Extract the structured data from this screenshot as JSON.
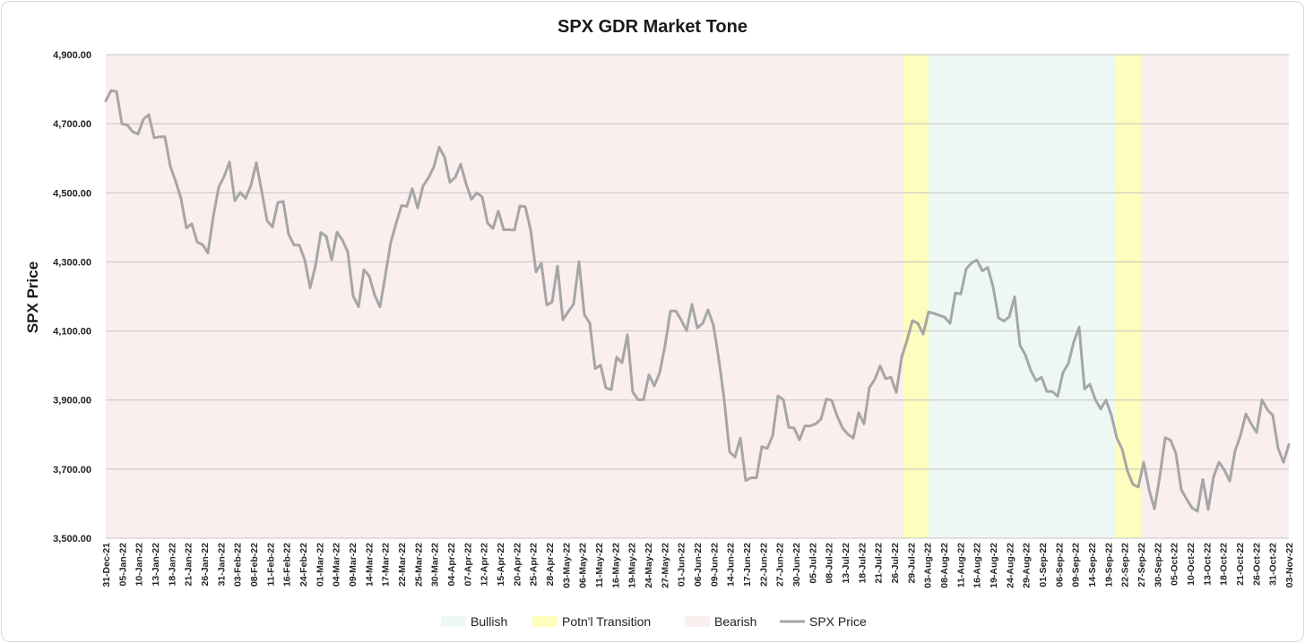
{
  "chart_data": {
    "type": "line",
    "title": "SPX GDR Market Tone",
    "ylabel": "SPX Price",
    "xlabel": "",
    "ylim": [
      3500,
      4900
    ],
    "yticks": [
      3500,
      3700,
      3900,
      4100,
      4300,
      4500,
      4700,
      4900
    ],
    "ytick_labels": [
      "3,500.00",
      "3,700.00",
      "3,900.00",
      "4,100.00",
      "4,300.00",
      "4,500.00",
      "4,700.00",
      "4,900.00"
    ],
    "grid": "horizontal",
    "legend_placement": "bottom-center",
    "xtick_labels": [
      "31-Dec-21",
      "05-Jan-22",
      "10-Jan-22",
      "13-Jan-22",
      "18-Jan-22",
      "21-Jan-22",
      "26-Jan-22",
      "31-Jan-22",
      "03-Feb-22",
      "08-Feb-22",
      "11-Feb-22",
      "16-Feb-22",
      "24-Feb-22",
      "01-Mar-22",
      "04-Mar-22",
      "09-Mar-22",
      "14-Mar-22",
      "17-Mar-22",
      "22-Mar-22",
      "25-Mar-22",
      "30-Mar-22",
      "04-Apr-22",
      "07-Apr-22",
      "12-Apr-22",
      "15-Apr-22",
      "20-Apr-22",
      "25-Apr-22",
      "28-Apr-22",
      "03-May-22",
      "06-May-22",
      "11-May-22",
      "16-May-22",
      "19-May-22",
      "24-May-22",
      "27-May-22",
      "01-Jun-22",
      "06-Jun-22",
      "09-Jun-22",
      "14-Jun-22",
      "17-Jun-22",
      "22-Jun-22",
      "27-Jun-22",
      "30-Jun-22",
      "05-Jul-22",
      "08-Jul-22",
      "13-Jul-22",
      "18-Jul-22",
      "21-Jul-22",
      "26-Jul-22",
      "29-Jul-22",
      "03-Aug-22",
      "08-Aug-22",
      "11-Aug-22",
      "16-Aug-22",
      "19-Aug-22",
      "24-Aug-22",
      "29-Aug-22",
      "01-Sep-22",
      "06-Sep-22",
      "09-Sep-22",
      "14-Sep-22",
      "19-Sep-22",
      "22-Sep-22",
      "27-Sep-22",
      "30-Sep-22",
      "05-Oct-22",
      "10-Oct-22",
      "13-Oct-22",
      "18-Oct-22",
      "21-Oct-22",
      "26-Oct-22",
      "31-Oct-22",
      "03-Nov-22"
    ],
    "regions": [
      {
        "tone": "Bearish",
        "start": 0,
        "end": 124
      },
      {
        "tone": "Potn'l Transition",
        "start": 124,
        "end": 128
      },
      {
        "tone": "Bullish",
        "start": 128,
        "end": 157
      },
      {
        "tone": "Potn'l Transition",
        "start": 157,
        "end": 161
      },
      {
        "tone": "Bearish",
        "start": 161,
        "end": 184
      }
    ],
    "legend": [
      {
        "name": "Bullish",
        "color": "#eef8f2",
        "kind": "box"
      },
      {
        "name": "Potn'l Transition",
        "color": "#fdfdbd",
        "kind": "box"
      },
      {
        "name": "Bearish",
        "color": "#fbeeee",
        "kind": "box"
      },
      {
        "name": "SPX Price",
        "color": "#a6a6a6",
        "kind": "line"
      }
    ],
    "series": [
      {
        "name": "SPX Price",
        "color": "#a6a6a6",
        "values": [
          4766,
          4796,
          4793,
          4700,
          4696,
          4677,
          4670,
          4713,
          4726,
          4659,
          4662,
          4662,
          4577,
          4533,
          4483,
          4398,
          4410,
          4357,
          4350,
          4326,
          4432,
          4516,
          4547,
          4589,
          4477,
          4501,
          4484,
          4522,
          4587,
          4504,
          4419,
          4401,
          4472,
          4475,
          4380,
          4349,
          4348,
          4306,
          4225,
          4289,
          4385,
          4374,
          4306,
          4386,
          4363,
          4329,
          4201,
          4170,
          4277,
          4259,
          4204,
          4170,
          4262,
          4357,
          4412,
          4463,
          4461,
          4512,
          4456,
          4520,
          4543,
          4575,
          4632,
          4603,
          4530,
          4545,
          4583,
          4526,
          4481,
          4500,
          4488,
          4412,
          4397,
          4447,
          4393,
          4393,
          4392,
          4462,
          4460,
          4393,
          4271,
          4296,
          4175,
          4184,
          4288,
          4132,
          4156,
          4178,
          4301,
          4147,
          4123,
          3991,
          4001,
          3935,
          3930,
          4024,
          4008,
          4089,
          3923,
          3901,
          3901,
          3973,
          3941,
          3979,
          4058,
          4158,
          4158,
          4132,
          4101,
          4177,
          4109,
          4122,
          4161,
          4116,
          4018,
          3901,
          3750,
          3735,
          3790,
          3667,
          3675,
          3675,
          3765,
          3760,
          3796,
          3912,
          3901,
          3821,
          3819,
          3785,
          3825,
          3825,
          3831,
          3845,
          3903,
          3899,
          3854,
          3819,
          3801,
          3790,
          3863,
          3831,
          3936,
          3960,
          3999,
          3962,
          3966,
          3922,
          4024,
          4073,
          4130,
          4122,
          4091,
          4155,
          4151,
          4145,
          4140,
          4122,
          4210,
          4207,
          4280,
          4297,
          4305,
          4274,
          4284,
          4228,
          4138,
          4129,
          4141,
          4199,
          4058,
          4031,
          3986,
          3956,
          3966,
          3925,
          3925,
          3911,
          3980,
          4006,
          4068,
          4111,
          3932,
          3946,
          3902,
          3874,
          3900,
          3856,
          3790,
          3758,
          3694,
          3656,
          3648,
          3720,
          3641,
          3585,
          3679,
          3791,
          3784,
          3745,
          3640,
          3613,
          3588,
          3578,
          3670,
          3583,
          3678,
          3720,
          3698,
          3665,
          3753,
          3797,
          3860,
          3831,
          3806,
          3901,
          3872,
          3856,
          3760,
          3720,
          3771
        ]
      }
    ]
  }
}
